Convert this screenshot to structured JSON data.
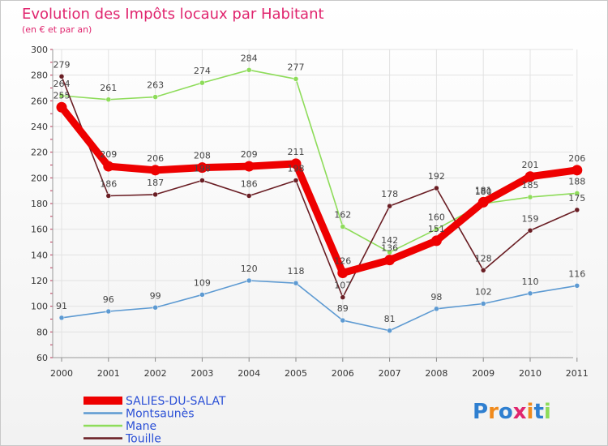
{
  "chart_data": {
    "type": "line",
    "title": "Evolution des Impôts locaux par Habitant",
    "subtitle": "(en € et par an)",
    "xlabel": "",
    "ylabel": "",
    "ylim": [
      60,
      300
    ],
    "yticks": [
      60,
      80,
      100,
      120,
      140,
      160,
      180,
      200,
      220,
      240,
      260,
      280,
      300
    ],
    "grid": true,
    "categories": [
      "2000",
      "2001",
      "2002",
      "2003",
      "2004",
      "2005",
      "2006",
      "2007",
      "2008",
      "2009",
      "2010",
      "2011"
    ],
    "series": [
      {
        "name": "SALIES-DU-SALAT",
        "color": "#ee0000",
        "values": [
          255,
          209,
          206,
          208,
          209,
          211,
          126,
          136,
          151,
          181,
          201,
          206
        ]
      },
      {
        "name": "Montsaunès",
        "color": "#5d9ad2",
        "values": [
          91,
          96,
          99,
          109,
          120,
          118,
          89,
          81,
          98,
          102,
          110,
          116
        ]
      },
      {
        "name": "Mane",
        "color": "#8edc5a",
        "values": [
          264,
          261,
          263,
          274,
          284,
          277,
          162,
          142,
          160,
          180,
          185,
          188
        ]
      },
      {
        "name": "Touille",
        "color": "#6a1e24",
        "values": [
          279,
          186,
          187,
          198,
          186,
          198,
          107,
          178,
          192,
          128,
          159,
          175
        ]
      }
    ],
    "legend_position": "bottom-left",
    "logo": "Proxiti"
  }
}
